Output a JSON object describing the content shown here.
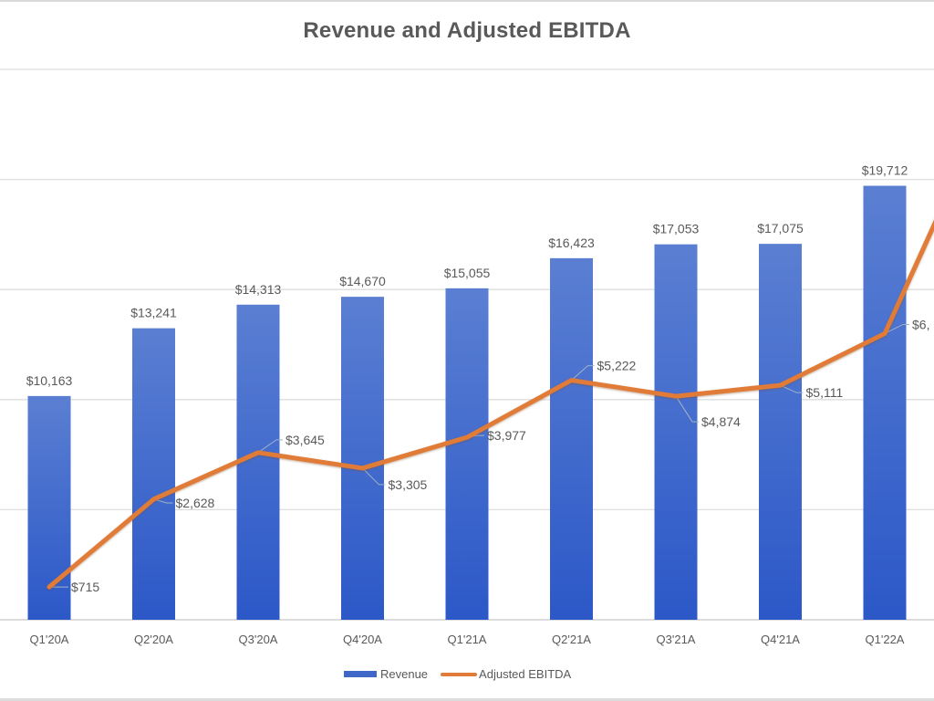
{
  "chart_data": {
    "type": "bar+line",
    "title": "Revenue and Adjusted EBITDA",
    "xlabel": "",
    "ylabel": "",
    "categories": [
      "Q1'20A",
      "Q2'20A",
      "Q3'20A",
      "Q4'20A",
      "Q1'21A",
      "Q2'21A",
      "Q3'21A",
      "Q4'21A",
      "Q1'22A"
    ],
    "series": [
      {
        "name": "Revenue",
        "type": "bar",
        "axis": "primary",
        "color": "#3f67c8",
        "values": [
          10163,
          13241,
          14313,
          14670,
          15055,
          16423,
          17053,
          17075,
          19712
        ],
        "labels": [
          "$10,163",
          "$13,241",
          "$14,313",
          "$14,670",
          "$15,055",
          "$16,423",
          "$17,053",
          "$17,075",
          "$19,712"
        ]
      },
      {
        "name": "Adjusted EBITDA",
        "type": "line",
        "axis": "secondary",
        "color": "#e07b39",
        "values": [
          715,
          2628,
          3645,
          3305,
          3977,
          5222,
          4874,
          5111,
          6240
        ],
        "labels": [
          "$715",
          "$2,628",
          "$3,645",
          "$3,305",
          "$3,977",
          "$5,222",
          "$4,874",
          "$5,111",
          "$6,"
        ],
        "offscreen_next_value_estimate": 11250
      }
    ],
    "ylim": [
      0,
      25000
    ],
    "ylim_secondary": [
      0,
      12000
    ],
    "y_gridline_step": 5000,
    "grid": true,
    "y_axis_tick_labels_visible": false,
    "legend": {
      "position": "bottom",
      "entries": [
        "Revenue",
        "Adjusted EBITDA"
      ]
    }
  }
}
